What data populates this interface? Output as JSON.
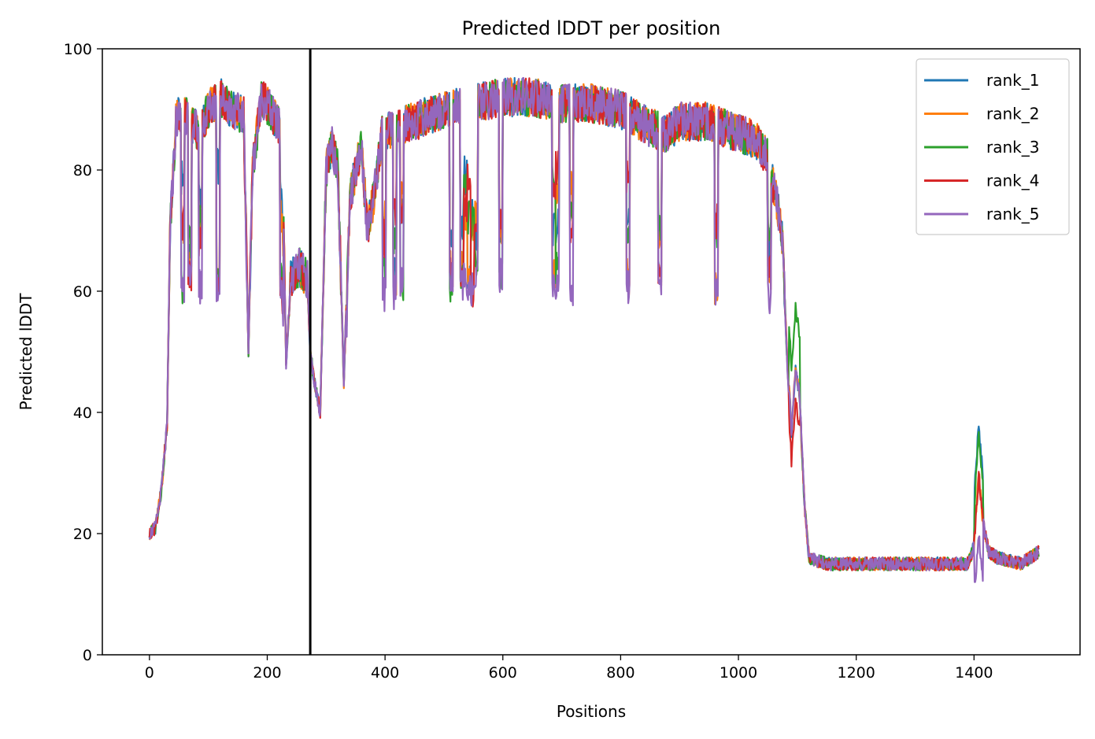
{
  "chart_data": {
    "type": "line",
    "title": "Predicted lDDT per position",
    "xlabel": "Positions",
    "ylabel": "Predicted lDDT",
    "xlim": [
      -80,
      1580
    ],
    "ylim": [
      0,
      100
    ],
    "x_ticks": [
      0,
      200,
      400,
      600,
      800,
      1000,
      1200,
      1400
    ],
    "y_ticks": [
      0,
      20,
      40,
      60,
      80,
      100
    ],
    "vline_x": 273,
    "legend_position": "top-right",
    "grid": false,
    "series": [
      {
        "name": "rank_1",
        "color": "#1f77b4",
        "variant": 0
      },
      {
        "name": "rank_2",
        "color": "#ff7f0e",
        "variant": 1
      },
      {
        "name": "rank_3",
        "color": "#2ca02c",
        "variant": 2
      },
      {
        "name": "rank_4",
        "color": "#d62728",
        "variant": 3
      },
      {
        "name": "rank_5",
        "color": "#9467bd",
        "variant": 4
      }
    ],
    "profile_x": [
      0,
      10,
      20,
      30,
      35,
      45,
      55,
      70,
      85,
      100,
      120,
      140,
      160,
      168,
      175,
      190,
      205,
      215,
      225,
      232,
      240,
      255,
      268,
      273,
      280,
      290,
      300,
      310,
      320,
      330,
      340,
      350,
      360,
      370,
      380,
      395,
      420,
      450,
      500,
      550,
      600,
      650,
      700,
      750,
      800,
      850,
      880,
      900,
      950,
      1000,
      1030,
      1050,
      1065,
      1075,
      1082,
      1090,
      1097,
      1105,
      1112,
      1120,
      1150,
      1200,
      1250,
      1300,
      1350,
      1390,
      1400,
      1408,
      1415,
      1425,
      1440,
      1480,
      1510
    ],
    "profile_y": [
      20,
      21,
      27,
      38,
      70,
      88,
      90,
      88,
      86,
      90,
      92,
      90,
      89,
      50,
      80,
      92,
      90,
      88,
      86,
      48,
      62,
      64,
      62,
      50,
      45,
      40,
      80,
      84,
      80,
      45,
      75,
      80,
      84,
      70,
      75,
      86,
      87,
      88,
      90,
      91,
      92,
      92,
      91,
      91,
      90,
      87,
      86,
      88,
      88,
      86,
      85,
      82,
      75,
      68,
      50,
      35,
      45,
      40,
      25,
      16,
      15,
      15,
      15,
      15,
      15,
      15,
      18,
      30,
      22,
      17,
      16,
      15,
      17
    ]
  }
}
